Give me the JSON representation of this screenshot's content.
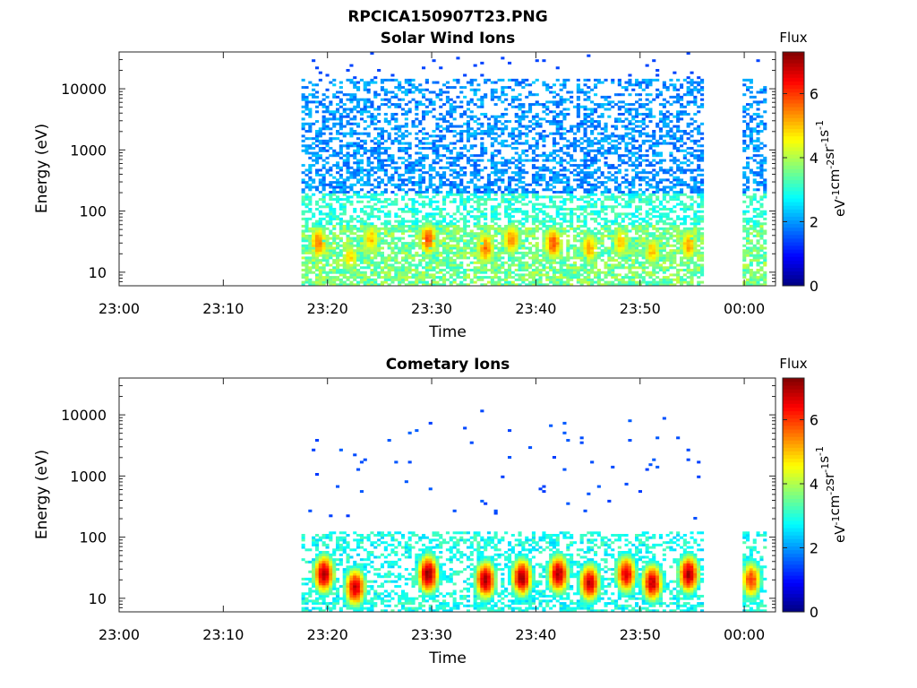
{
  "figure_title": "RPCICA150907T23.PNG",
  "colormap": [
    "#00007f",
    "#0000ff",
    "#007fff",
    "#00ffff",
    "#7fff7f",
    "#ffff00",
    "#ff7f00",
    "#ff0000",
    "#7f0000"
  ],
  "chart_data": [
    {
      "type": "heatmap",
      "title": "Solar Wind Ions",
      "xlabel": "Time",
      "ylabel": "Energy (eV)",
      "x_range": [
        "23:00",
        "00:03"
      ],
      "x_ticks": [
        "23:00",
        "23:10",
        "23:20",
        "23:30",
        "23:40",
        "23:50",
        "00:00"
      ],
      "y_scale": "log",
      "y_range": [
        6,
        40000
      ],
      "y_ticks": [
        10,
        100,
        1000,
        10000
      ],
      "y_tick_labels": [
        "10",
        "100",
        "1000",
        "10000"
      ],
      "colorbar": {
        "label_top": "Flux",
        "unit_parts": [
          "eV",
          "-1",
          "cm",
          "-2",
          "sr",
          "-1",
          "s",
          "-1"
        ],
        "range": [
          0,
          7.3
        ],
        "ticks": [
          0,
          2,
          4,
          6
        ]
      },
      "data_intervals": [
        [
          "23:17:30",
          "23:55:50"
        ],
        [
          "23:59:50",
          "00:02:00"
        ]
      ],
      "features": {
        "flux_band_low_energy_eV": [
          6,
          60
        ],
        "flux_band_low_energy_value": 3.8,
        "sparse_high_energy_range_eV": [
          80,
          15000
        ],
        "sparse_high_energy_value": 1.5
      },
      "peaks": [
        {
          "t": "23:19",
          "e": 30,
          "v": 5.6
        },
        {
          "t": "23:22",
          "e": 18,
          "v": 4.8
        },
        {
          "t": "23:24",
          "e": 35,
          "v": 5.0
        },
        {
          "t": "23:29.5",
          "e": 35,
          "v": 5.8
        },
        {
          "t": "23:35",
          "e": 25,
          "v": 5.6
        },
        {
          "t": "23:37.5",
          "e": 35,
          "v": 5.4
        },
        {
          "t": "23:41.5",
          "e": 30,
          "v": 5.8
        },
        {
          "t": "23:45",
          "e": 25,
          "v": 5.2
        },
        {
          "t": "23:48",
          "e": 30,
          "v": 5.0
        },
        {
          "t": "23:51",
          "e": 22,
          "v": 5.0
        },
        {
          "t": "23:54.5",
          "e": 28,
          "v": 5.2
        }
      ]
    },
    {
      "type": "heatmap",
      "title": "Cometary Ions",
      "xlabel": "Time",
      "ylabel": "Energy (eV)",
      "x_range": [
        "23:00",
        "00:03"
      ],
      "x_ticks": [
        "23:00",
        "23:10",
        "23:20",
        "23:30",
        "23:40",
        "23:50",
        "00:00"
      ],
      "y_scale": "log",
      "y_range": [
        6,
        40000
      ],
      "y_ticks": [
        10,
        100,
        1000,
        10000
      ],
      "y_tick_labels": [
        "10",
        "100",
        "1000",
        "10000"
      ],
      "colorbar": {
        "label_top": "Flux",
        "unit_parts": [
          "eV",
          "-1",
          "cm",
          "-2",
          "sr",
          "-1",
          "s",
          "-1"
        ],
        "range": [
          0,
          7.3
        ],
        "ticks": [
          0,
          2,
          4,
          6
        ]
      },
      "data_intervals": [
        [
          "23:17:30",
          "23:55:50"
        ],
        [
          "23:59:50",
          "00:02:00"
        ]
      ],
      "features": {
        "flux_band_energy_eV": [
          6,
          120
        ],
        "scattered_points_range_eV": [
          200,
          13000
        ]
      },
      "peaks": [
        {
          "t": "23:19.5",
          "e": 25,
          "v": 7.0
        },
        {
          "t": "23:22.5",
          "e": 15,
          "v": 6.8
        },
        {
          "t": "23:29.5",
          "e": 25,
          "v": 7.2
        },
        {
          "t": "23:35",
          "e": 20,
          "v": 7.0
        },
        {
          "t": "23:38.5",
          "e": 22,
          "v": 7.0
        },
        {
          "t": "23:42",
          "e": 25,
          "v": 7.0
        },
        {
          "t": "23:45",
          "e": 18,
          "v": 6.8
        },
        {
          "t": "23:48.5",
          "e": 25,
          "v": 6.6
        },
        {
          "t": "23:51",
          "e": 18,
          "v": 6.8
        },
        {
          "t": "23:54.5",
          "e": 25,
          "v": 7.0
        },
        {
          "t": "00:00.5",
          "e": 20,
          "v": 6.0
        }
      ]
    }
  ]
}
